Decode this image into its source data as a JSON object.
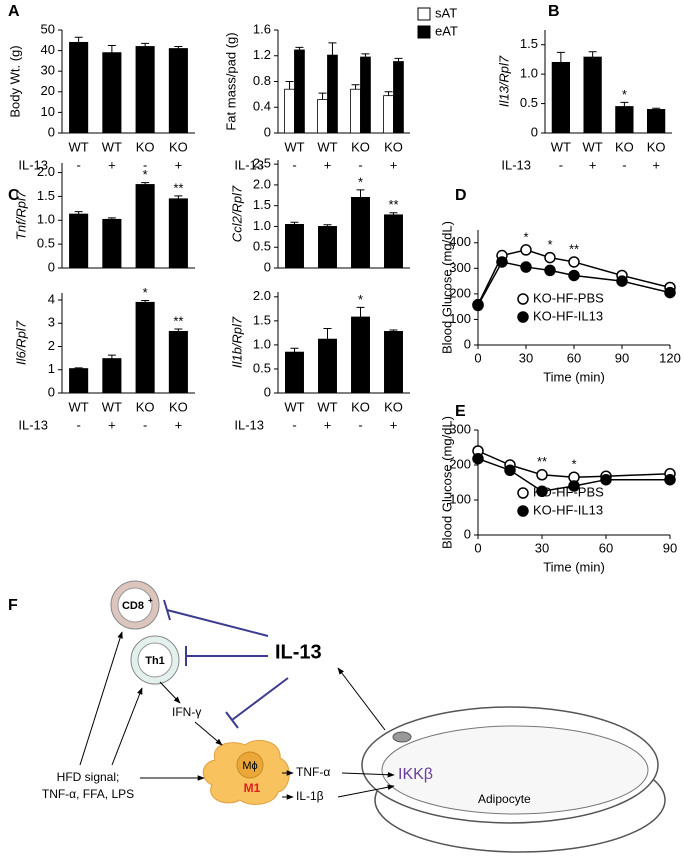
{
  "chart_data": [
    {
      "type": "bar",
      "panel": "A",
      "ylabel": "Body Wt. (g)",
      "categories": [
        "WT",
        "WT",
        "KO",
        "KO"
      ],
      "treatment_label": "IL-13",
      "treatment": [
        "-",
        "+",
        "-",
        "+"
      ],
      "values": [
        44,
        39,
        42,
        41
      ],
      "errors": [
        2.5,
        3.5,
        1.5,
        1
      ],
      "color": "#000000",
      "ylim": [
        0,
        50
      ],
      "yticks": [
        0,
        10,
        20,
        30,
        40,
        50
      ]
    },
    {
      "type": "bar",
      "ylabel": "Fat mass/pad (g)",
      "categories": [
        "WT",
        "WT",
        "KO",
        "KO"
      ],
      "treatment_label": "IL-13",
      "treatment": [
        "-",
        "+",
        "-",
        "+"
      ],
      "series": [
        {
          "name": "sAT",
          "color": "#ffffff",
          "values": [
            0.68,
            0.52,
            0.68,
            0.58
          ],
          "errors": [
            0.12,
            0.1,
            0.07,
            0.06
          ]
        },
        {
          "name": "eAT",
          "color": "#000000",
          "values": [
            1.29,
            1.21,
            1.18,
            1.11
          ],
          "errors": [
            0.04,
            0.19,
            0.05,
            0.05
          ]
        }
      ],
      "ylim": [
        0,
        1.6
      ],
      "yticks": [
        0,
        0.4,
        0.8,
        1.2,
        1.6
      ],
      "legend": "upper right"
    },
    {
      "type": "bar",
      "panel": "B",
      "ylabel": "Il13/Rpl7",
      "categories": [
        "WT",
        "WT",
        "KO",
        "KO"
      ],
      "treatment_label": "IL-13",
      "treatment": [
        "-",
        "+",
        "-",
        "+"
      ],
      "values": [
        1.2,
        1.29,
        0.45,
        0.4
      ],
      "errors": [
        0.17,
        0.09,
        0.07,
        0.02
      ],
      "significance": [
        null,
        null,
        "*",
        null
      ],
      "color": "#000000",
      "ylim": [
        0,
        1.75
      ],
      "yticks": [
        0,
        0.5,
        {
          "value": 1,
          "label": "1.0"
        },
        1.5
      ]
    },
    {
      "type": "bar",
      "panel": "C",
      "ylabel": "Tnf/Rpl7",
      "values": [
        1.13,
        1.02,
        1.75,
        1.45
      ],
      "errors": [
        0.05,
        0.03,
        0.04,
        0.06
      ],
      "significance": [
        null,
        null,
        "*",
        "**"
      ],
      "color": "#000000",
      "ylim": [
        0,
        2.2
      ],
      "yticks": [
        0,
        0.5,
        {
          "value": 1,
          "label": "1.0"
        },
        1.5,
        {
          "value": 2,
          "label": "2.0"
        }
      ]
    },
    {
      "type": "bar",
      "ylabel": "Ccl2/Rpl7",
      "values": [
        1.05,
        1.0,
        1.7,
        1.28
      ],
      "errors": [
        0.05,
        0.04,
        0.18,
        0.05
      ],
      "significance": [
        null,
        null,
        "*",
        "**"
      ],
      "color": "#000000",
      "ylim": [
        0,
        2.6
      ],
      "yticks": [
        0,
        0.5,
        {
          "value": 1,
          "label": "1.0"
        },
        1.5,
        {
          "value": 2,
          "label": "2.0"
        },
        2.5
      ]
    },
    {
      "type": "bar",
      "ylabel": "Il6/Rpl7",
      "categories": [
        "WT",
        "WT",
        "KO",
        "KO"
      ],
      "treatment_label": "IL-13",
      "treatment": [
        "-",
        "+",
        "-",
        "+"
      ],
      "values": [
        1.05,
        1.48,
        3.9,
        2.65
      ],
      "errors": [
        0.03,
        0.15,
        0.08,
        0.1
      ],
      "significance": [
        null,
        null,
        "*",
        "**"
      ],
      "color": "#000000",
      "ylim": [
        0,
        4.3
      ],
      "yticks": [
        0,
        1,
        2,
        3,
        4
      ]
    },
    {
      "type": "bar",
      "ylabel": "Il1b/Rpl7",
      "categories": [
        "WT",
        "WT",
        "KO",
        "KO"
      ],
      "treatment_label": "IL-13",
      "treatment": [
        "-",
        "+",
        "-",
        "+"
      ],
      "values": [
        0.85,
        1.12,
        1.58,
        1.28
      ],
      "errors": [
        0.08,
        0.22,
        0.2,
        0.03
      ],
      "significance": [
        null,
        null,
        "*",
        null
      ],
      "color": "#000000",
      "ylim": [
        0,
        2.1
      ],
      "yticks": [
        0,
        0.5,
        {
          "value": 1,
          "label": "1.0"
        },
        1.5,
        {
          "value": 2,
          "label": "2.0"
        }
      ]
    },
    {
      "type": "line",
      "panel": "D",
      "ylabel": "Blood Glucose (mg/dL)",
      "xlabel": "Time (min)",
      "x": [
        0,
        15,
        30,
        45,
        60,
        90,
        120
      ],
      "series": [
        {
          "name": "KO-HF-PBS",
          "color": "#ffffff",
          "values": [
            158,
            350,
            372,
            342,
            325,
            272,
            225
          ]
        },
        {
          "name": "KO-HF-IL13",
          "color": "#000000",
          "values": [
            155,
            325,
            305,
            292,
            272,
            250,
            205
          ]
        }
      ],
      "significance": [
        null,
        null,
        "*",
        "*",
        "**",
        null,
        null
      ],
      "xlim": [
        0,
        120
      ],
      "xticks": [
        0,
        30,
        60,
        90,
        120
      ],
      "ylim": [
        0,
        450
      ],
      "yticks": [
        0,
        100,
        200,
        300,
        400
      ],
      "legend": "center"
    },
    {
      "type": "line",
      "panel": "E",
      "ylabel": "Blood Glucose (mg/dL)",
      "xlabel": "Time (min)",
      "x": [
        0,
        15,
        30,
        45,
        60,
        90
      ],
      "series": [
        {
          "name": "KO-HF-PBS",
          "color": "#ffffff",
          "values": [
            240,
            200,
            172,
            165,
            168,
            175
          ]
        },
        {
          "name": "KO-HF-IL13",
          "color": "#000000",
          "values": [
            218,
            185,
            125,
            140,
            158,
            158
          ]
        }
      ],
      "significance": [
        null,
        null,
        "**",
        "*",
        null,
        null
      ],
      "xlim": [
        0,
        90
      ],
      "xticks": [
        0,
        30,
        60,
        90
      ],
      "ylim": [
        0,
        300
      ],
      "yticks": [
        0,
        100,
        200,
        300
      ],
      "legend": "center"
    }
  ],
  "diagram": {
    "panel": "F",
    "cd8": "CD8",
    "cd8_sup": "+",
    "th1": "Th1",
    "il13": "IL-13",
    "ifng": "IFN-γ",
    "hfd": [
      "HFD signal;",
      "TNF-α, FFA, LPS"
    ],
    "macrophage": "Mϕ",
    "m1": "M1",
    "tnfa": "TNF-α",
    "il1b": "IL-1β",
    "ikkb": "IKKβ",
    "adipocyte": "Adipocyte"
  }
}
